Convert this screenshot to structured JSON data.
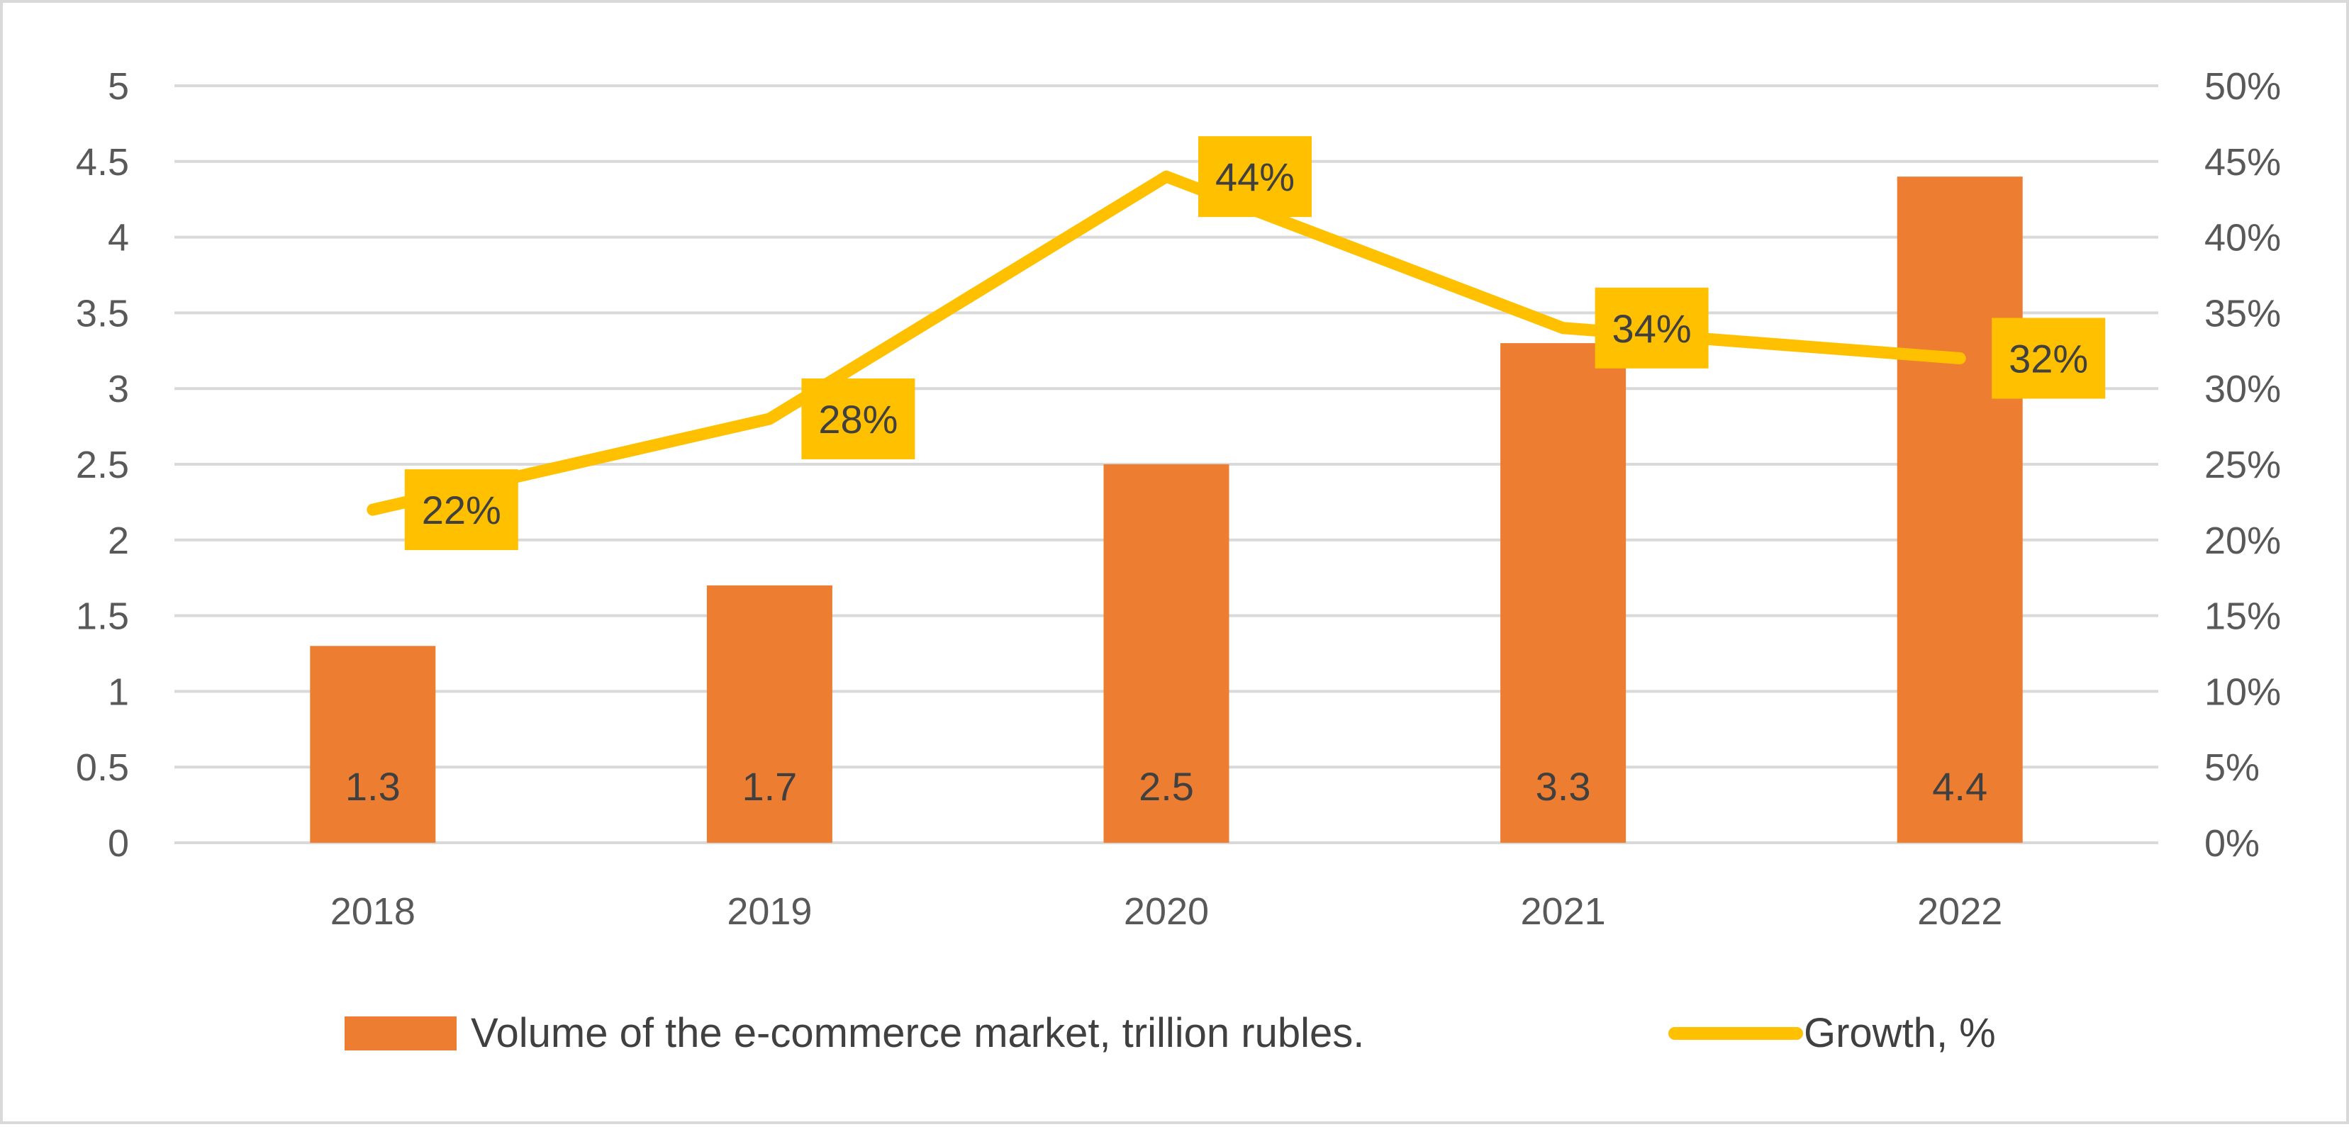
{
  "chart_data": {
    "type": "bar+line",
    "categories": [
      "2018",
      "2019",
      "2020",
      "2021",
      "2022"
    ],
    "series": [
      {
        "name": "Volume of the e-commerce market, trillion rubles.",
        "type": "bar",
        "axis": "left",
        "values": [
          1.3,
          1.7,
          2.5,
          3.3,
          4.4
        ],
        "labels": [
          "1.3",
          "1.7",
          "2.5",
          "3.3",
          "4.4"
        ],
        "color": "#ED7D31"
      },
      {
        "name": "Growth, %",
        "type": "line",
        "axis": "right",
        "values": [
          22,
          28,
          44,
          34,
          32
        ],
        "labels": [
          "22%",
          "28%",
          "44%",
          "34%",
          "32%"
        ],
        "color": "#FFC000"
      }
    ],
    "y_left": {
      "min": 0,
      "max": 5,
      "step": 0.5,
      "tick_labels": [
        "0",
        "0.5",
        "1",
        "1.5",
        "2",
        "2.5",
        "3",
        "3.5",
        "4",
        "4.5",
        "5"
      ]
    },
    "y_right": {
      "min": 0,
      "max": 50,
      "step": 5,
      "tick_labels": [
        "0%",
        "5%",
        "10%",
        "15%",
        "20%",
        "25%",
        "30%",
        "35%",
        "40%",
        "45%",
        "50%"
      ]
    },
    "grid": true,
    "legend_position": "bottom",
    "title": "",
    "xlabel": "",
    "ylabel": ""
  }
}
